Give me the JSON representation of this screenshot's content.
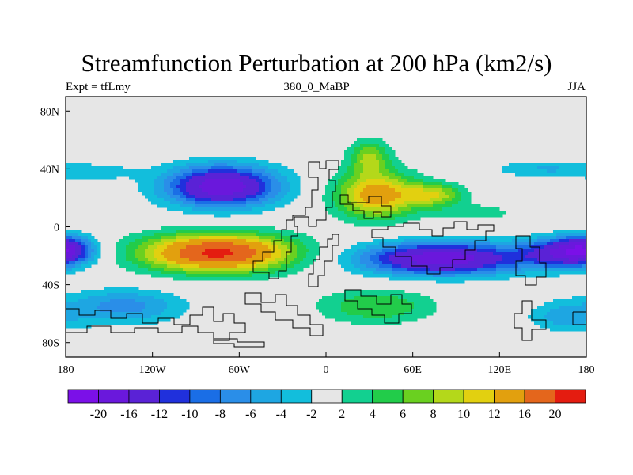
{
  "title": "Streamfunction Perturbation at 200 hPa (km2/s)",
  "subtitle_left": "Expt = tfLmy",
  "subtitle_center": "380_0_MaBP",
  "subtitle_right": "JJA",
  "chart_data": {
    "type": "heatmap",
    "x_range": [
      -180,
      180
    ],
    "y_range": [
      -90,
      90
    ],
    "x_ticks": [
      {
        "value": -180,
        "label": "180"
      },
      {
        "value": -120,
        "label": "120W"
      },
      {
        "value": -60,
        "label": "60W"
      },
      {
        "value": 0,
        "label": "0"
      },
      {
        "value": 60,
        "label": "60E"
      },
      {
        "value": 120,
        "label": "120E"
      },
      {
        "value": 180,
        "label": "180"
      }
    ],
    "y_ticks": [
      {
        "value": 80,
        "label": "80N"
      },
      {
        "value": 40,
        "label": "40N"
      },
      {
        "value": 0,
        "label": "0"
      },
      {
        "value": -40,
        "label": "40S"
      },
      {
        "value": -80,
        "label": "80S"
      }
    ],
    "contour_levels": [
      -20,
      -16,
      -12,
      -10,
      -8,
      -6,
      -4,
      -2,
      2,
      4,
      6,
      8,
      10,
      12,
      16,
      20
    ],
    "colorbar_labels": [
      "-20",
      "-16",
      "-12",
      "-10",
      "-8",
      "-6",
      "-4",
      "-2",
      "2",
      "4",
      "6",
      "8",
      "10",
      "12",
      "16",
      "20"
    ],
    "colors": [
      "#7b10e8",
      "#6a18dc",
      "#5a22d6",
      "#2030dc",
      "#1a6ee6",
      "#2a8ee8",
      "#1ea6e2",
      "#12bedc",
      "#e6e6e6",
      "#12d090",
      "#22cc4a",
      "#6ad020",
      "#b4d81a",
      "#e2d010",
      "#e2a00e",
      "#e4661c",
      "#e41c10"
    ],
    "features": [
      {
        "lon": -72,
        "lat": 28,
        "lon_radius": 38,
        "lat_radius": 14,
        "peak": -19
      },
      {
        "lon": -75,
        "lat": -18,
        "lon_radius": 52,
        "lat_radius": 13,
        "peak": 21
      },
      {
        "lon": 80,
        "lat": -22,
        "lon_radius": 55,
        "lat_radius": 11,
        "peak": -19
      },
      {
        "lon": 165,
        "lat": -18,
        "lon_radius": 30,
        "lat_radius": 10,
        "peak": -14
      },
      {
        "lon": -180,
        "lat": -15,
        "lon_radius": 18,
        "lat_radius": 10,
        "peak": -10
      },
      {
        "lon": 35,
        "lat": 22,
        "lon_radius": 28,
        "lat_radius": 16,
        "peak": 14
      },
      {
        "lon": 75,
        "lat": 22,
        "lon_radius": 20,
        "lat_radius": 8,
        "peak": 9
      },
      {
        "lon": 30,
        "lat": 48,
        "lon_radius": 14,
        "lat_radius": 12,
        "peak": 8
      },
      {
        "lon": 35,
        "lat": -55,
        "lon_radius": 40,
        "lat_radius": 12,
        "peak": 6
      },
      {
        "lon": -140,
        "lat": -55,
        "lon_radius": 40,
        "lat_radius": 12,
        "peak": -7
      },
      {
        "lon": 165,
        "lat": -62,
        "lon_radius": 25,
        "lat_radius": 10,
        "peak": -5
      },
      {
        "lon": 150,
        "lat": 40,
        "lon_radius": 35,
        "lat_radius": 6,
        "peak": -4
      },
      {
        "lon": 105,
        "lat": 10,
        "lon_radius": 30,
        "lat_radius": 6,
        "peak": 3
      },
      {
        "lon": -160,
        "lat": 38,
        "lon_radius": 30,
        "lat_radius": 6,
        "peak": -3
      }
    ]
  }
}
